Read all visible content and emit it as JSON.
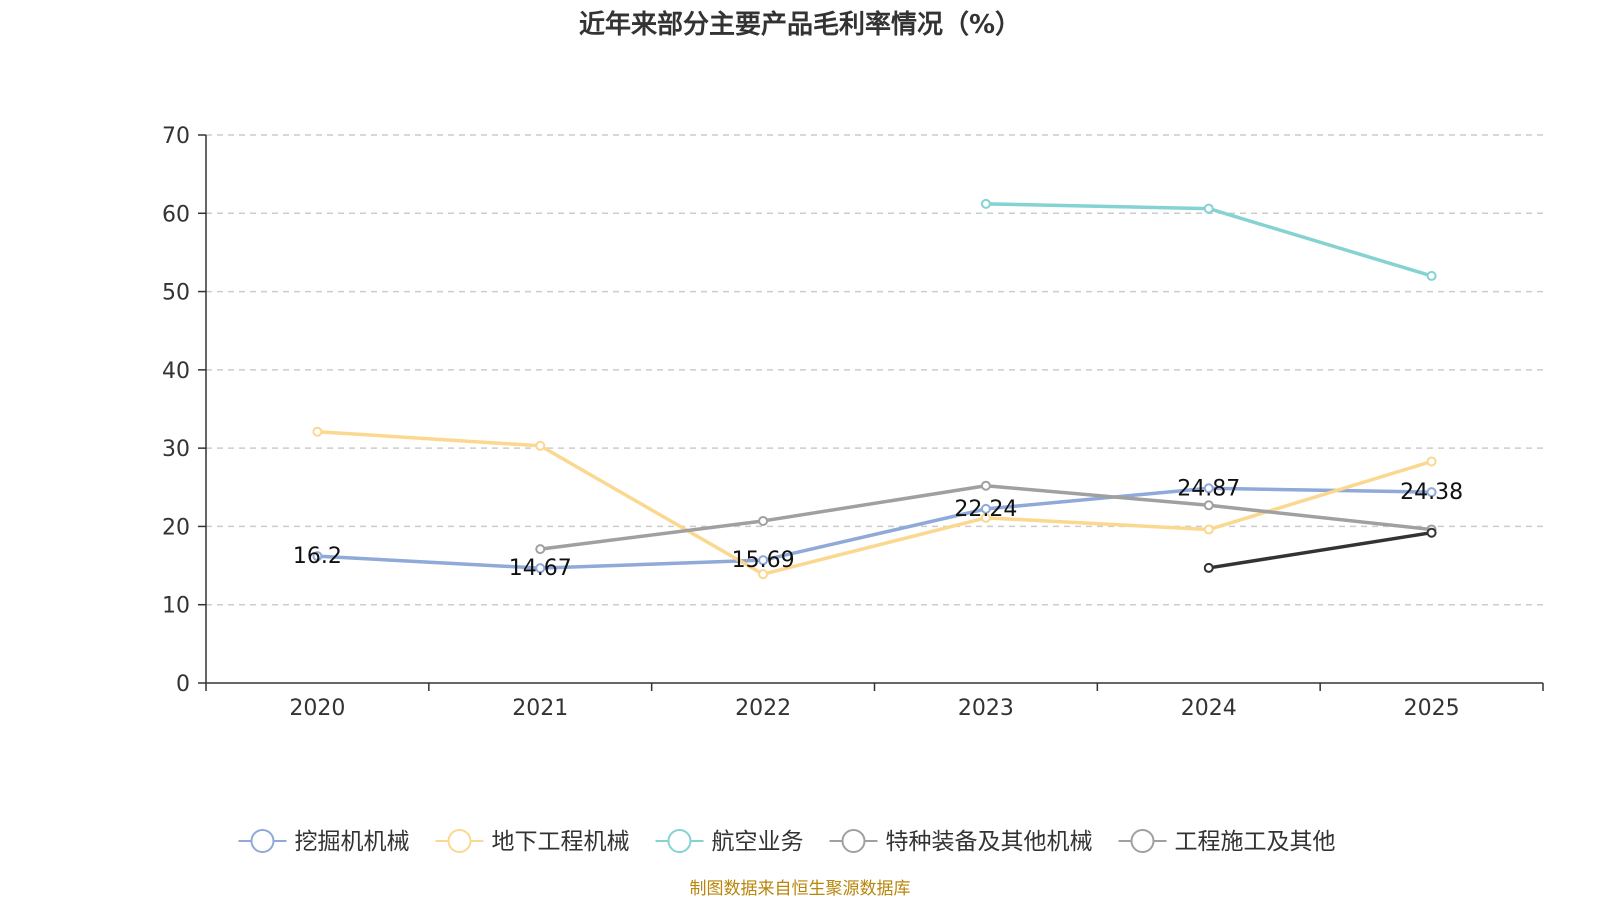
{
  "chart_data": {
    "type": "line",
    "title": "近年来部分主要产品毛利率情况（%）",
    "categories": [
      "2020",
      "2021",
      "2022",
      "2023",
      "2024",
      "2025"
    ],
    "ylim": [
      0,
      70
    ],
    "yticks": [
      0,
      10,
      20,
      30,
      40,
      50,
      60,
      70
    ],
    "grid": true,
    "legend_position": "bottom",
    "series": [
      {
        "name": "挖掘机机械",
        "color": "#8fa9d8",
        "values": [
          16.2,
          14.67,
          15.69,
          22.24,
          24.87,
          24.38
        ],
        "labels": [
          "16.2",
          "14.67",
          "15.69",
          "22.24",
          "24.87",
          "24.38"
        ]
      },
      {
        "name": "地下工程机械",
        "color": "#fbd88f",
        "values": [
          32.1,
          30.3,
          13.9,
          21.1,
          19.6,
          28.3
        ]
      },
      {
        "name": "航空业务",
        "color": "#85d2d2",
        "values": [
          null,
          null,
          null,
          61.2,
          60.6,
          52.0
        ]
      },
      {
        "name": "特种装备及其他机械",
        "color": "#a0a0a0",
        "values": [
          null,
          17.1,
          20.7,
          25.2,
          22.7,
          19.6
        ]
      },
      {
        "name": "工程施工及其他",
        "color": "#333333",
        "legend_color": "#a0a0a0",
        "values": [
          null,
          null,
          null,
          null,
          14.7,
          19.2
        ]
      }
    ],
    "source": "制图数据来自恒生聚源数据库"
  }
}
